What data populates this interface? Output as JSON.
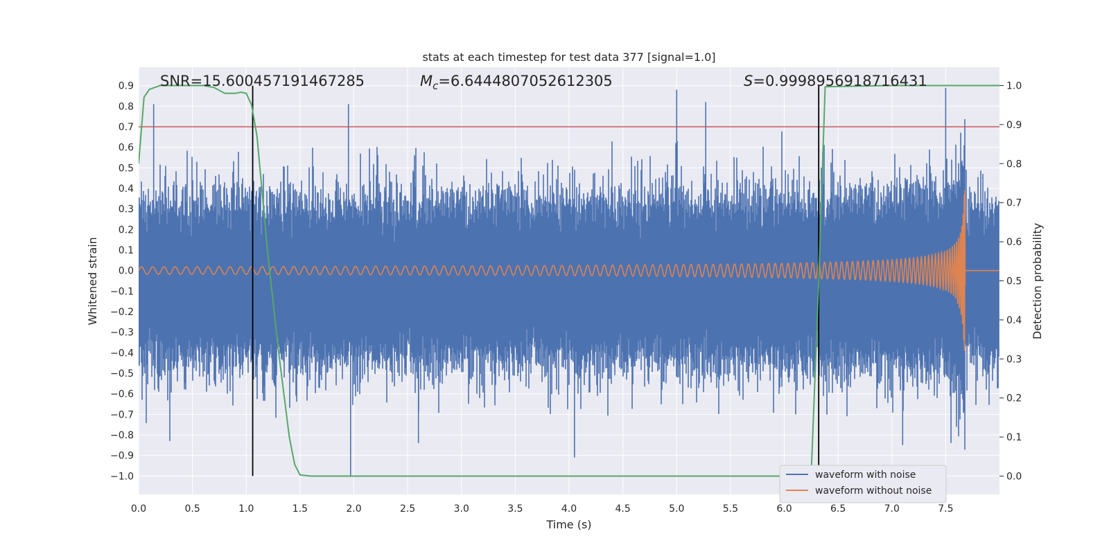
{
  "chart_data": {
    "type": "line",
    "title": "stats at each timestep for test data 377 [signal=1.0]",
    "xlabel": "Time (s)",
    "ylabel": "Whitened strain",
    "y2label": "Detection probability",
    "xlim": [
      0.0,
      8.0
    ],
    "ylim": [
      -1.09,
      0.99
    ],
    "y2lim": [
      -0.047,
      1.047
    ],
    "xticks": [
      "0.0",
      "0.5",
      "1.0",
      "1.5",
      "2.0",
      "2.5",
      "3.0",
      "3.5",
      "4.0",
      "4.5",
      "5.0",
      "5.5",
      "6.0",
      "6.5",
      "7.0",
      "7.5"
    ],
    "yticks": [
      "0.9",
      "0.8",
      "0.7",
      "0.6",
      "0.5",
      "0.4",
      "0.3",
      "0.2",
      "0.1",
      "0.0",
      "−0.1",
      "−0.2",
      "−0.3",
      "−0.4",
      "−0.5",
      "−0.6",
      "−0.7",
      "−0.8",
      "−0.9",
      "−1.0"
    ],
    "y2ticks": [
      "1.0",
      "0.9",
      "0.8",
      "0.7",
      "0.6",
      "0.5",
      "0.4",
      "0.3",
      "0.2",
      "0.1",
      "0.0"
    ],
    "grid": true,
    "legend_position": "bottom-right",
    "annotations": [
      {
        "prefix": "SNR",
        "value": "=15.600457191467285"
      },
      {
        "prefix": "M",
        "sub": "c",
        "value": "=6.6444807052612305"
      },
      {
        "prefix": "S",
        "value": "=0.9998956918716431"
      }
    ],
    "series": [
      {
        "name": "waveform with noise",
        "color": "#4c72b0",
        "axis": "left",
        "description": "noise with amplitude envelope",
        "envelope_top_typical": 0.3,
        "envelope_bottom_typical": -0.4,
        "peaks": [
          {
            "x": 0.14,
            "y": 0.81
          },
          {
            "x": 1.06,
            "y": 0.78
          },
          {
            "x": 1.95,
            "y": 0.81
          },
          {
            "x": 1.97,
            "y": -1.0
          },
          {
            "x": 0.29,
            "y": -0.83
          },
          {
            "x": 4.05,
            "y": -0.91
          },
          {
            "x": 5.0,
            "y": 0.88
          },
          {
            "x": 5.27,
            "y": 0.82
          },
          {
            "x": 7.5,
            "y": 0.89
          },
          {
            "x": 7.1,
            "y": -0.85
          },
          {
            "x": 2.6,
            "y": -0.84
          },
          {
            "x": 7.55,
            "y": -0.84
          }
        ]
      },
      {
        "name": "waveform without noise",
        "color": "#dd8452",
        "axis": "left",
        "description": "chirp signal",
        "start_amplitude": 0.018,
        "peak_amplitude_top": 0.39,
        "peak_amplitude_bottom": -0.42,
        "merger_time": 7.68,
        "after_merger_value": 0.0
      },
      {
        "name": "detection probability",
        "color": "#55a868",
        "axis": "right",
        "x": [
          0.0,
          0.05,
          0.1,
          0.2,
          0.3,
          0.4,
          0.5,
          0.6,
          0.7,
          0.8,
          0.9,
          0.95,
          1.0,
          1.05,
          1.1,
          1.2,
          1.3,
          1.4,
          1.45,
          1.5,
          1.6,
          1.8,
          2.0,
          3.0,
          4.0,
          5.0,
          6.0,
          6.25,
          6.32,
          6.38,
          7.0,
          7.5,
          8.0
        ],
        "y": [
          0.8,
          0.97,
          0.99,
          1.0,
          1.0,
          1.0,
          1.0,
          1.0,
          0.995,
          0.98,
          0.98,
          0.983,
          0.98,
          0.95,
          0.87,
          0.57,
          0.32,
          0.1,
          0.03,
          0.003,
          0.0,
          0.0,
          0.0,
          0.0,
          0.0,
          0.0,
          0.0,
          0.002,
          0.5,
          0.997,
          1.0,
          1.0,
          1.0
        ]
      }
    ],
    "hlines": [
      {
        "axis": "left",
        "y": 0.7,
        "color": "#c44e52"
      }
    ],
    "vlines": [
      {
        "x": 1.06,
        "ymin": -1.0,
        "ymax": 0.9,
        "color": "#000000"
      },
      {
        "x": 6.32,
        "ymin": -1.0,
        "ymax": 0.9,
        "color": "#000000"
      }
    ],
    "colors": {
      "plot_background": "#eaeaf2",
      "grid": "#ffffff"
    }
  }
}
